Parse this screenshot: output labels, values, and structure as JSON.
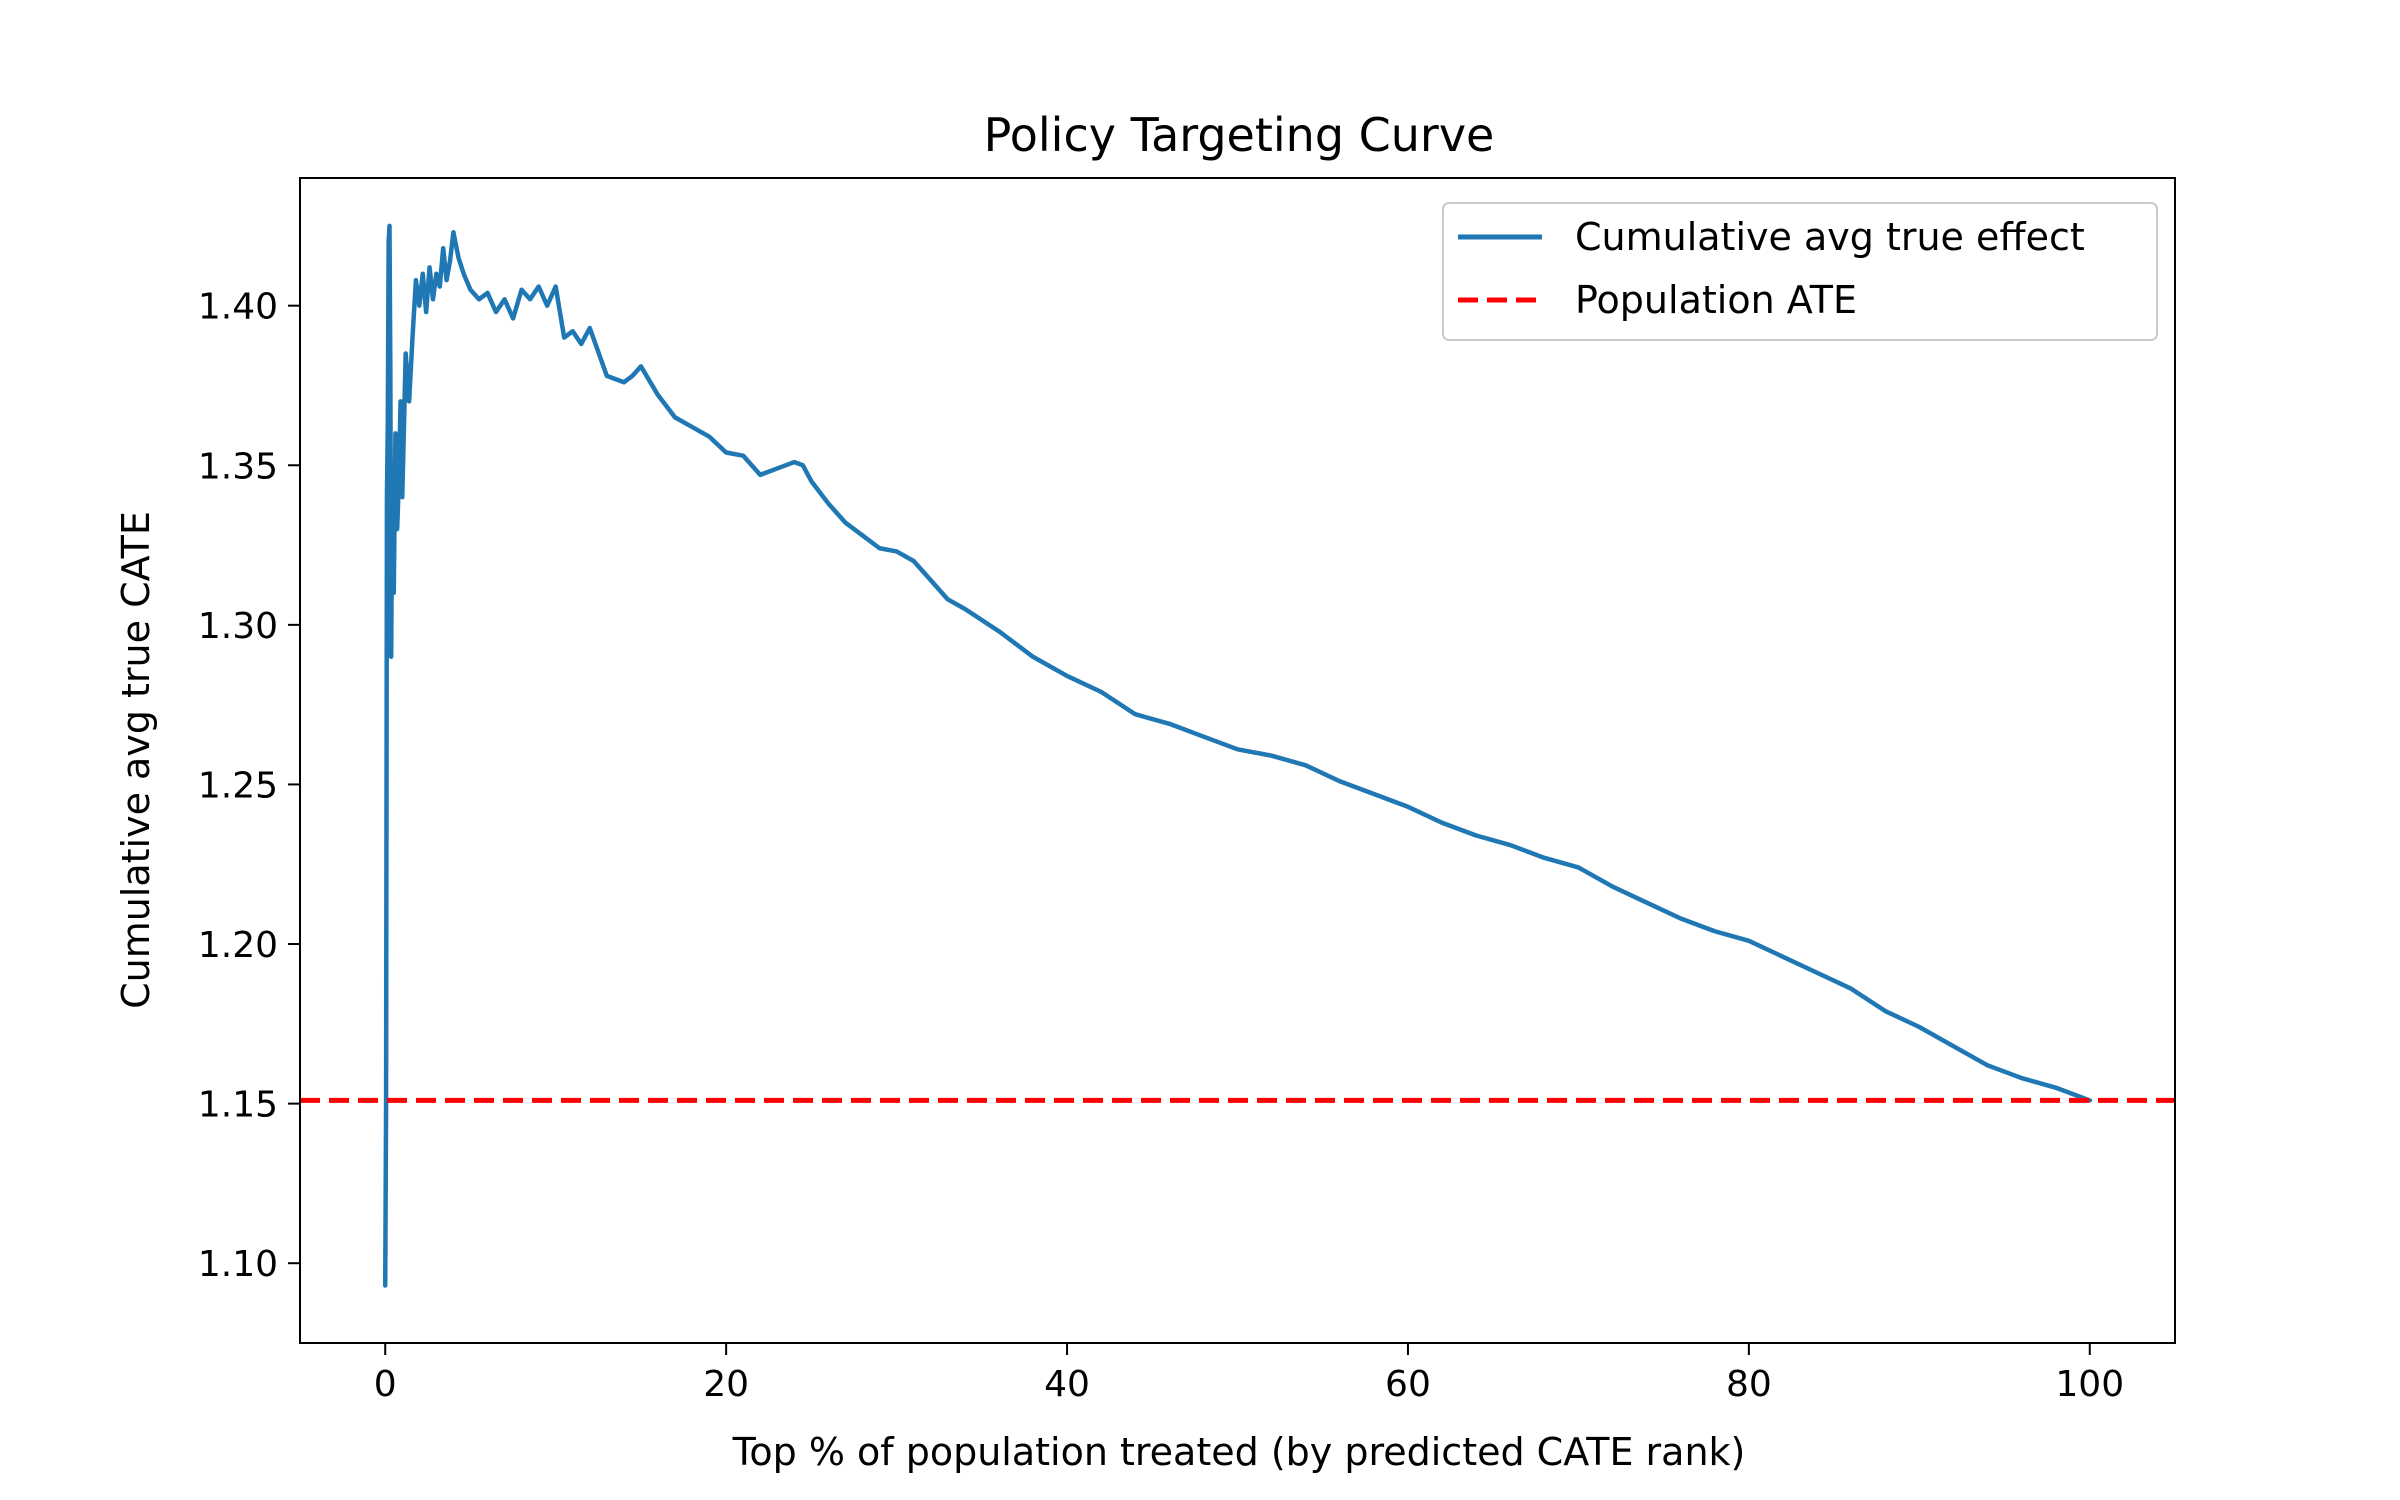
{
  "chart_data": {
    "type": "line",
    "title": "Policy Targeting Curve",
    "xlabel": "Top % of population treated (by predicted CATE rank)",
    "ylabel": "Cumulative avg true CATE",
    "xlim": [
      -5,
      105
    ],
    "ylim": [
      1.075,
      1.44
    ],
    "xticks": [
      0,
      20,
      40,
      60,
      80,
      100
    ],
    "yticks": [
      1.1,
      1.15,
      1.2,
      1.25,
      1.3,
      1.35,
      1.4
    ],
    "xtick_labels": [
      "0",
      "20",
      "40",
      "60",
      "80",
      "100"
    ],
    "ytick_labels": [
      "1.10",
      "1.15",
      "1.20",
      "1.25",
      "1.30",
      "1.35",
      "1.40"
    ],
    "grid": false,
    "legend_position": "top-right",
    "series": [
      {
        "name": "Cumulative avg true effect",
        "color": "#1f77b4",
        "style": "solid",
        "x": [
          0.0,
          0.05,
          0.1,
          0.15,
          0.2,
          0.25,
          0.3,
          0.35,
          0.4,
          0.5,
          0.6,
          0.7,
          0.8,
          0.9,
          1.0,
          1.2,
          1.4,
          1.6,
          1.8,
          2.0,
          2.2,
          2.4,
          2.6,
          2.8,
          3.0,
          3.2,
          3.4,
          3.6,
          3.8,
          4.0,
          4.3,
          4.6,
          5.0,
          5.5,
          6.0,
          6.5,
          7.0,
          7.5,
          8.0,
          8.5,
          9.0,
          9.5,
          10.0,
          10.5,
          11.0,
          11.5,
          12.0,
          13.0,
          14.0,
          14.5,
          15.0,
          16.0,
          17.0,
          18.0,
          19.0,
          20.0,
          21.0,
          22.0,
          23.0,
          24.0,
          24.5,
          25.0,
          26.0,
          27.0,
          28.0,
          29.0,
          30.0,
          31.0,
          32.0,
          33.0,
          34.0,
          36.0,
          38.0,
          40.0,
          42.0,
          44.0,
          46.0,
          48.0,
          50.0,
          52.0,
          54.0,
          56.0,
          58.0,
          60.0,
          62.0,
          64.0,
          66.0,
          68.0,
          70.0,
          72.0,
          74.0,
          76.0,
          78.0,
          80.0,
          82.0,
          84.0,
          86.0,
          88.0,
          90.0,
          92.0,
          94.0,
          96.0,
          98.0,
          100.0
        ],
        "values": [
          1.093,
          1.15,
          1.34,
          1.363,
          1.42,
          1.425,
          1.38,
          1.29,
          1.34,
          1.31,
          1.36,
          1.33,
          1.345,
          1.37,
          1.34,
          1.385,
          1.37,
          1.39,
          1.408,
          1.4,
          1.41,
          1.398,
          1.412,
          1.402,
          1.41,
          1.406,
          1.418,
          1.408,
          1.414,
          1.423,
          1.415,
          1.41,
          1.405,
          1.402,
          1.404,
          1.398,
          1.402,
          1.396,
          1.405,
          1.402,
          1.406,
          1.4,
          1.406,
          1.39,
          1.392,
          1.388,
          1.393,
          1.378,
          1.376,
          1.378,
          1.381,
          1.372,
          1.365,
          1.362,
          1.359,
          1.354,
          1.353,
          1.347,
          1.349,
          1.351,
          1.35,
          1.345,
          1.338,
          1.332,
          1.328,
          1.324,
          1.323,
          1.32,
          1.314,
          1.308,
          1.305,
          1.298,
          1.29,
          1.284,
          1.279,
          1.272,
          1.269,
          1.265,
          1.261,
          1.259,
          1.256,
          1.251,
          1.247,
          1.243,
          1.238,
          1.234,
          1.231,
          1.227,
          1.224,
          1.218,
          1.213,
          1.208,
          1.204,
          1.201,
          1.196,
          1.191,
          1.186,
          1.179,
          1.174,
          1.168,
          1.162,
          1.158,
          1.155,
          1.151
        ]
      },
      {
        "name": "Population ATE",
        "color": "#ff0000",
        "style": "dashed",
        "x": [
          -5,
          105
        ],
        "values": [
          1.151,
          1.151
        ]
      }
    ]
  }
}
